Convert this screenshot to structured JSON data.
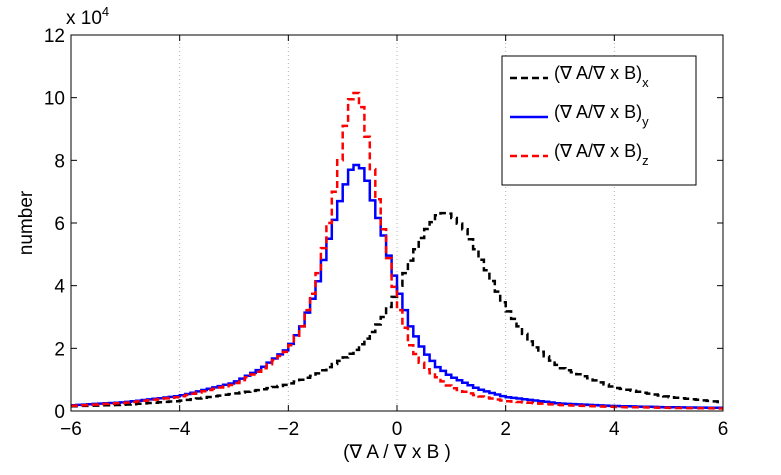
{
  "chart_data": {
    "type": "line",
    "title": "",
    "xlabel": "(∇ A / ∇ x B )",
    "ylabel": "number",
    "xlim": [
      -6,
      6
    ],
    "ylim": [
      0,
      120000
    ],
    "y_exponent_label": "x 10",
    "y_exponent_power": "4",
    "x_ticks": [
      -6,
      -4,
      -2,
      0,
      2,
      4,
      6
    ],
    "x_tick_labels": [
      "−6",
      "−4",
      "−2",
      "0",
      "2",
      "4",
      "6"
    ],
    "y_ticks": [
      0,
      20000,
      40000,
      60000,
      80000,
      100000,
      120000
    ],
    "y_tick_labels": [
      "0",
      "2",
      "4",
      "6",
      "8",
      "10",
      "12"
    ],
    "grid": "vertical dotted lines at x ticks",
    "legend_position": "top-right",
    "series": [
      {
        "name": "(∇ A/∇ x B)",
        "subscript": "x",
        "color": "#000000",
        "dash": "dashed",
        "x": [
          -6,
          -5,
          -4,
          -3,
          -2.5,
          -2,
          -1.5,
          -1,
          -0.75,
          -0.5,
          -0.25,
          0,
          0.25,
          0.5,
          0.75,
          0.9,
          1,
          1.25,
          1.5,
          2,
          2.5,
          3,
          4,
          5,
          6
        ],
        "y": [
          1500,
          2000,
          3200,
          5500,
          6800,
          8500,
          11500,
          16500,
          19500,
          24000,
          30000,
          38000,
          48000,
          57000,
          62500,
          63500,
          62500,
          58000,
          50000,
          33000,
          21000,
          14000,
          7500,
          4500,
          2800
        ]
      },
      {
        "name": "(∇ A/∇ x B)",
        "subscript": "y",
        "color": "#0000ff",
        "dash": "solid",
        "x": [
          -6,
          -5,
          -4,
          -3,
          -2.5,
          -2,
          -1.75,
          -1.5,
          -1.25,
          -1,
          -0.85,
          -0.75,
          -0.6,
          -0.5,
          -0.25,
          0,
          0.25,
          0.5,
          0.75,
          1,
          1.5,
          2,
          3,
          4,
          5,
          6
        ],
        "y": [
          1800,
          2800,
          4800,
          9000,
          13500,
          20000,
          27000,
          38000,
          55000,
          70000,
          77000,
          78500,
          77000,
          70000,
          56000,
          40000,
          27000,
          19000,
          14000,
          11000,
          7000,
          4500,
          2400,
          1600,
          1200,
          1000
        ]
      },
      {
        "name": "(∇ A/∇ x B)",
        "subscript": "z",
        "color": "#ff0000",
        "dash": "dashed",
        "x": [
          -6,
          -5,
          -4,
          -3,
          -2.5,
          -2,
          -1.75,
          -1.5,
          -1.25,
          -1,
          -0.9,
          -0.8,
          -0.7,
          -0.6,
          -0.5,
          -0.25,
          0,
          0.25,
          0.5,
          1,
          1.5,
          2,
          3,
          4,
          5,
          6
        ],
        "y": [
          1600,
          2600,
          4500,
          8500,
          13000,
          19500,
          27000,
          40000,
          60000,
          85000,
          97000,
          102000,
          101000,
          93000,
          82000,
          58000,
          35000,
          21000,
          14000,
          7500,
          4800,
          3200,
          1900,
          1300,
          1000,
          800
        ]
      }
    ]
  }
}
